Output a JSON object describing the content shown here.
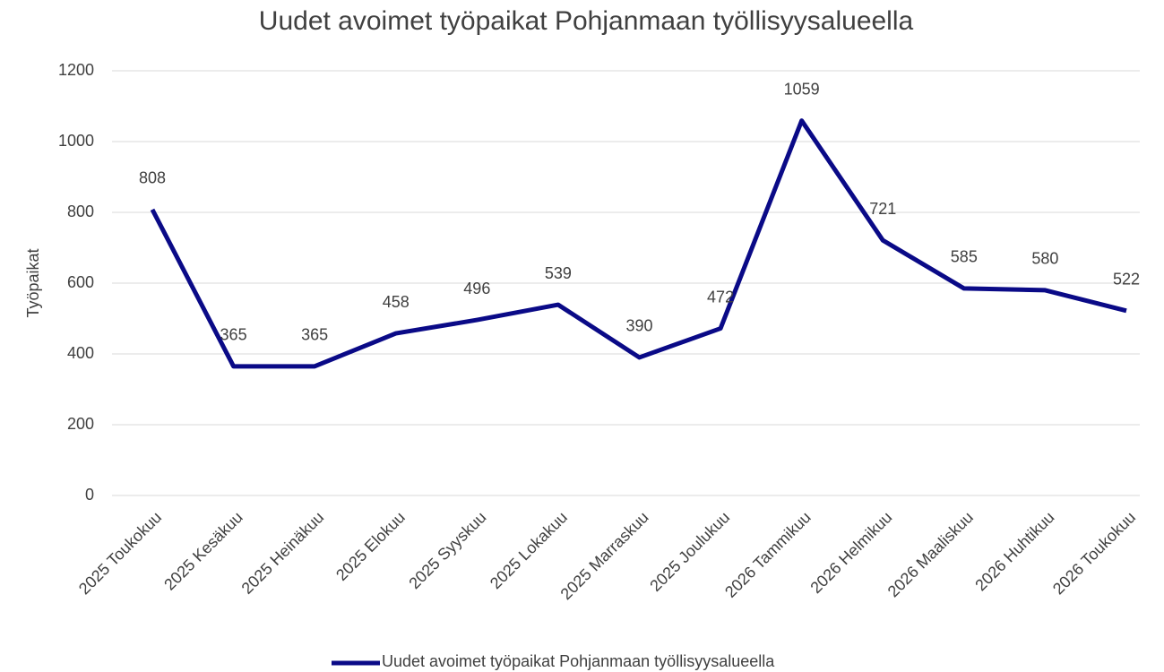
{
  "chart_data": {
    "type": "line",
    "title": "Uudet avoimet työpaikat Pohjanmaan työllisyysalueella",
    "ylabel": "Työpaikat",
    "categories": [
      "2025 Toukokuu",
      "2025 Kesäkuu",
      "2025 Heinäkuu",
      "2025 Elokuu",
      "2025 Syyskuu",
      "2025 Lokakuu",
      "2025 Marraskuu",
      "2025 Joulukuu",
      "2026 Tammikuu",
      "2026 Helmikuu",
      "2026 Maaliskuu",
      "2026 Huhtikuu",
      "2026 Toukokuu"
    ],
    "series": [
      {
        "name": "Uudet avoimet työpaikat Pohjanmaan työllisyysalueella",
        "color": "#0a0a87",
        "values": [
          808,
          365,
          365,
          458,
          496,
          539,
          390,
          472,
          1059,
          721,
          585,
          580,
          522
        ]
      }
    ],
    "ylim": [
      0,
      1200
    ],
    "yticks": [
      0,
      200,
      400,
      600,
      800,
      1000,
      1200
    ],
    "grid": true,
    "legend": "bottom"
  }
}
